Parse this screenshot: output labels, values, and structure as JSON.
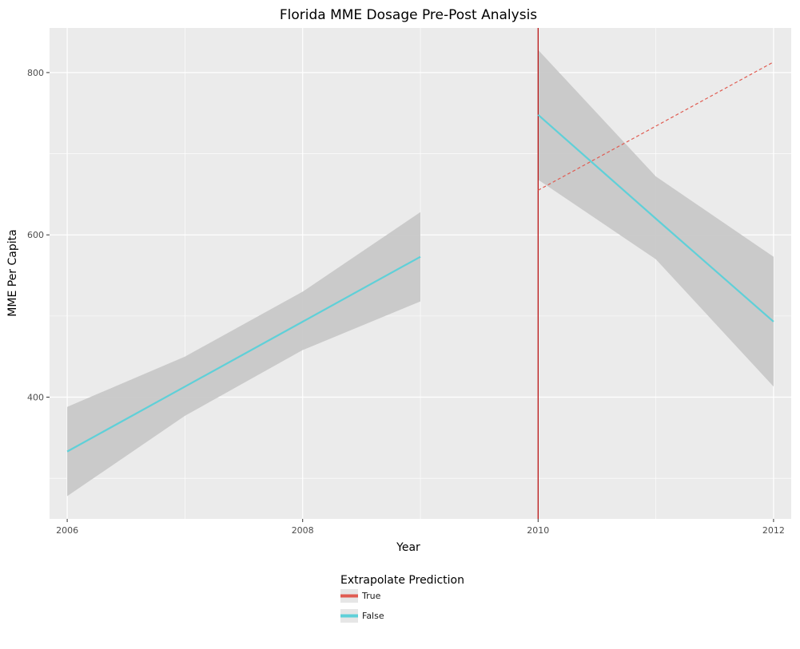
{
  "chart_data": {
    "type": "line",
    "title": "Florida MME Dosage Pre-Post Analysis",
    "xlabel": "Year",
    "ylabel": "MME Per Capita",
    "xlim": [
      2005.85,
      2012.15
    ],
    "ylim": [
      250,
      855
    ],
    "x_ticks": [
      2006,
      2008,
      2010,
      2012
    ],
    "y_ticks": [
      400,
      600,
      800
    ],
    "grid": true,
    "vline_x": 2010,
    "legend": {
      "title": "Extrapolate Prediction",
      "placement": "bottom",
      "entries": [
        {
          "label": "True",
          "color": "#e05c52"
        },
        {
          "label": "False",
          "color": "#5fd0d8"
        }
      ]
    },
    "series": [
      {
        "extrapolate": "False",
        "segment": "pre",
        "x": [
          2006,
          2007,
          2008,
          2009
        ],
        "y": [
          333,
          413,
          493,
          573
        ],
        "ci_lower": [
          278,
          377,
          458,
          518
        ],
        "ci_upper": [
          388,
          450,
          530,
          628
        ]
      },
      {
        "extrapolate": "False",
        "segment": "post",
        "x": [
          2010,
          2011,
          2012
        ],
        "y": [
          748,
          620,
          493
        ],
        "ci_lower": [
          668,
          570,
          413
        ],
        "ci_upper": [
          828,
          672,
          573
        ]
      },
      {
        "extrapolate": "True",
        "segment": "projection",
        "x": [
          2010,
          2012
        ],
        "y": [
          655,
          813
        ]
      }
    ],
    "colors": {
      "panel": "#ebebeb",
      "grid": "#ffffff",
      "ribbon": "#c8c8c8",
      "vline": "#b30000",
      "false_line": "#5fd0d8",
      "true_line": "#e05c52"
    }
  }
}
